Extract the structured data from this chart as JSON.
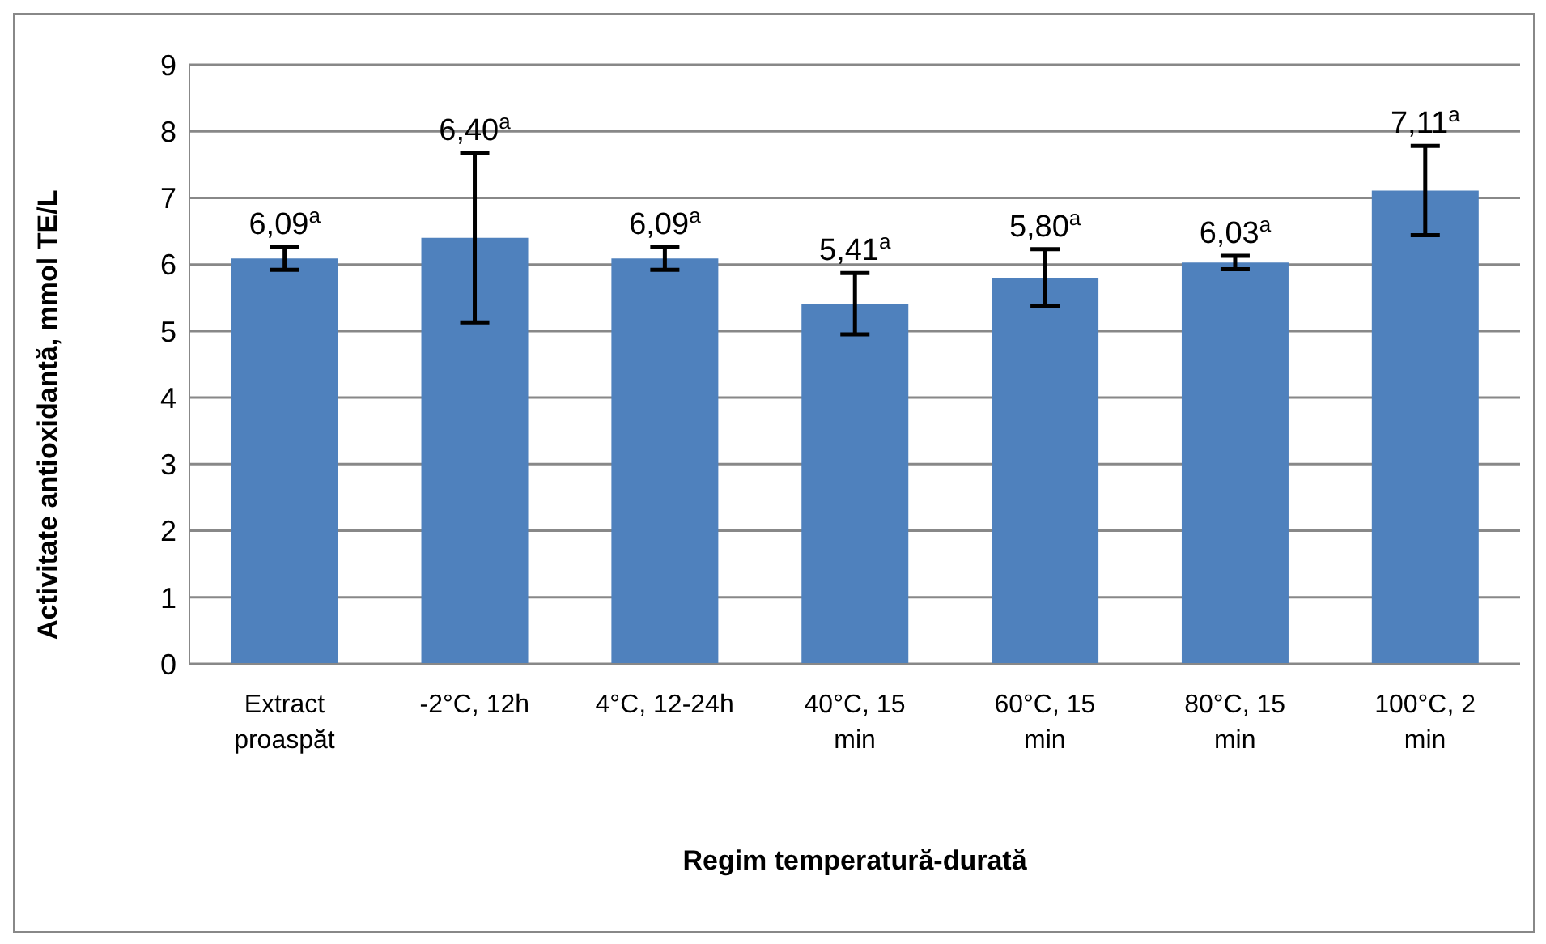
{
  "chart_data": {
    "type": "bar",
    "xlabel": "Regim temperatură-durată",
    "ylabel": "Activitate antioxidantă, mmol TE/L",
    "categories": [
      "Extract proaspăt",
      "-2°C, 12h",
      "4°C, 12-24h",
      "40°C, 15 min",
      "60°C, 15 min",
      "80°C, 15 min",
      "100°C, 2 min"
    ],
    "values": [
      6.09,
      6.4,
      6.09,
      5.41,
      5.8,
      6.03,
      7.11
    ],
    "errors": [
      0.17,
      1.27,
      0.17,
      0.46,
      0.43,
      0.1,
      0.67
    ],
    "value_labels": [
      "6,09$^{a}$",
      "6,40$^{a}$",
      "6,09$^{a}$",
      "5,41$^{a}$",
      "5,80$^{a}$",
      "6,03$^{a}$",
      "7,11$^{a}$"
    ],
    "color": "#4f81bd",
    "ylim": [
      0,
      9
    ],
    "yticks": [
      0,
      1,
      2,
      3,
      4,
      5,
      6,
      7,
      8,
      9
    ],
    "grid": "y",
    "legend": false
  }
}
